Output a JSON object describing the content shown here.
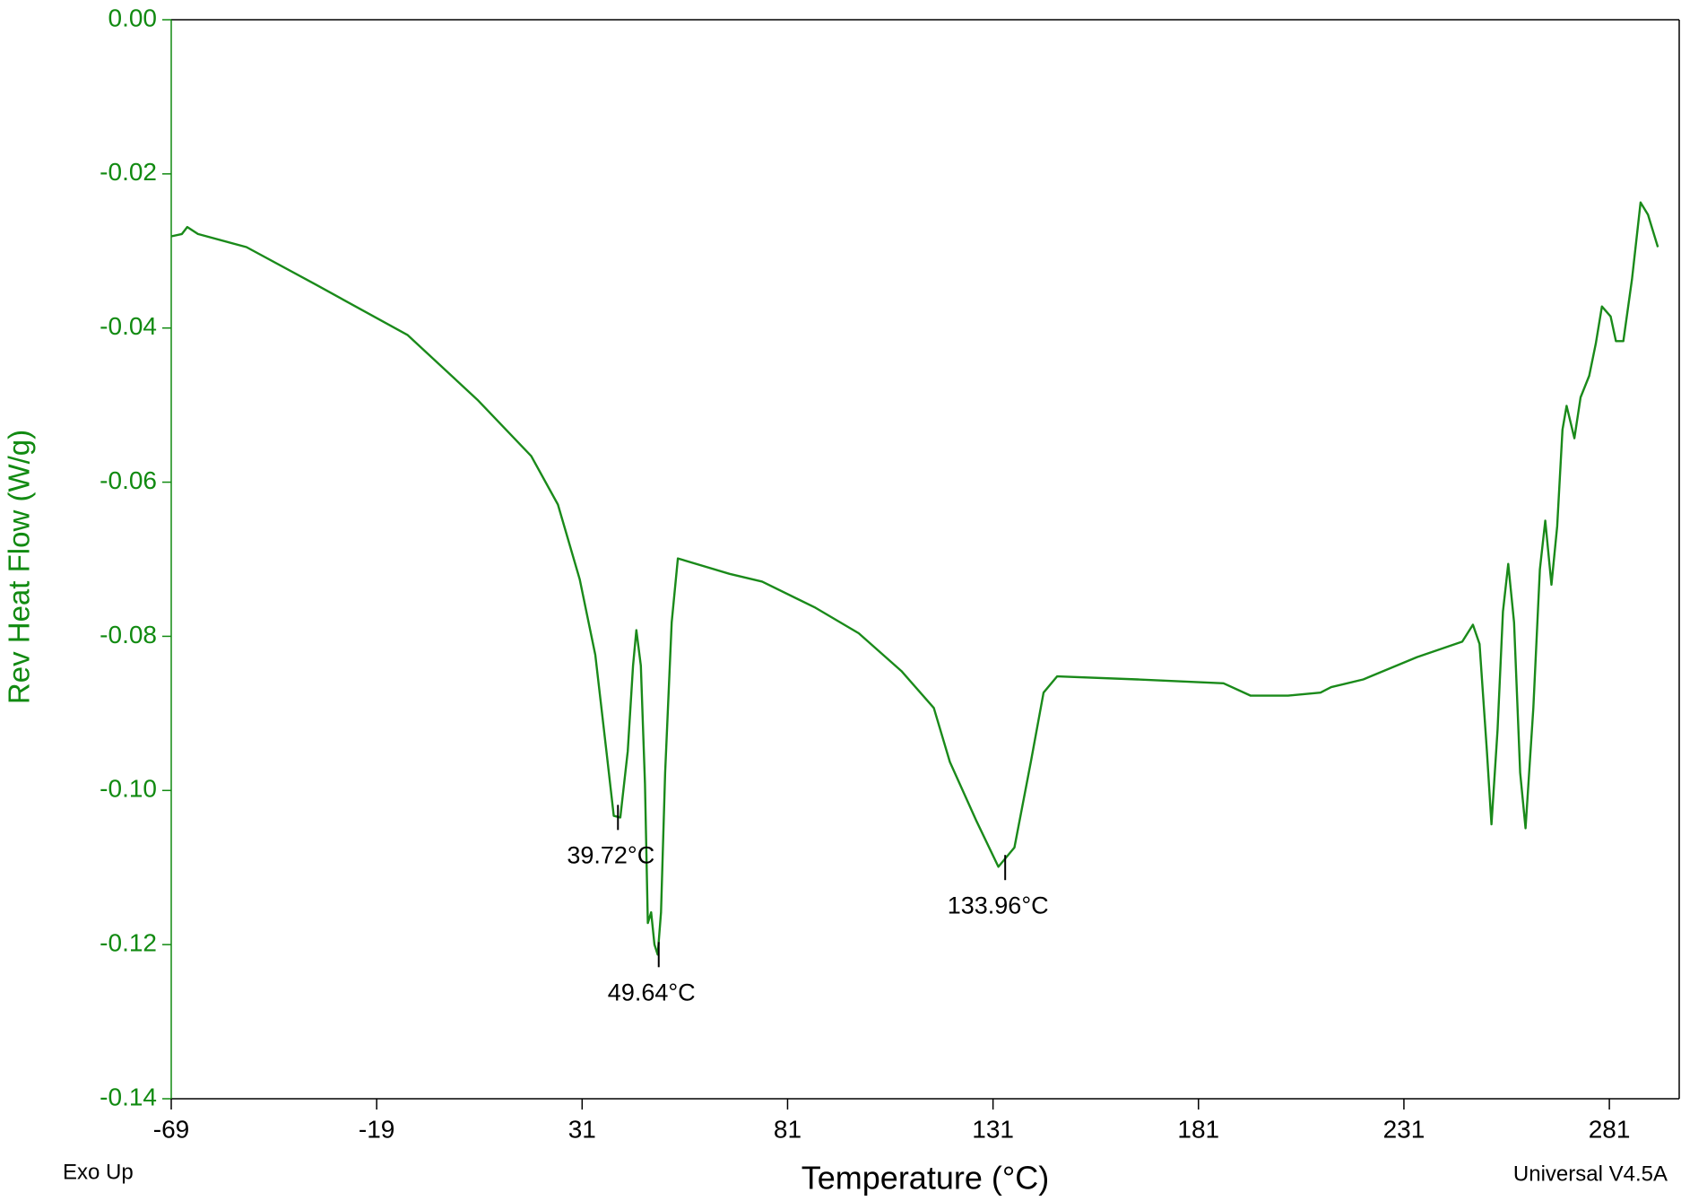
{
  "chart_data": {
    "type": "line",
    "xlabel": "Temperature (°C)",
    "ylabel": "Rev Heat Flow (W/g)",
    "footer_left": "Exo Up",
    "footer_right": "Universal V4.5A",
    "color": "#1a8a1a",
    "xlim": [
      -69,
      298
    ],
    "ylim": [
      -0.14,
      0
    ],
    "xticks": [
      -69,
      -19,
      31,
      81,
      131,
      181,
      231,
      281
    ],
    "yticks": [
      {
        "value": 0,
        "label": "0.00"
      },
      -0.02,
      -0.04,
      -0.06,
      -0.08,
      {
        "value": -0.1,
        "label": "-0.10"
      },
      -0.12,
      -0.14
    ],
    "x": [
      -69,
      -66.4,
      -65.1,
      -62.5,
      -50.7,
      -33.7,
      -11.5,
      5.5,
      18.6,
      25.1,
      30.4,
      34.2,
      36.9,
      38.7,
      40.3,
      42.1,
      43.4,
      44.2,
      45.3,
      46.3,
      47.0,
      47.8,
      48.6,
      49.4,
      50.2,
      51.2,
      52.8,
      54.3,
      66.9,
      74.8,
      87.8,
      98.3,
      108.7,
      116.6,
      120.5,
      127.0,
      132.3,
      136.2,
      140.2,
      143.3,
      146.6,
      166.2,
      187.1,
      193.7,
      202.8,
      210.7,
      213.3,
      221.1,
      234.2,
      245.2,
      247.8,
      249.4,
      251.2,
      252.3,
      253.8,
      255.1,
      256.4,
      257.8,
      259.3,
      260.6,
      262.5,
      264.1,
      265.4,
      266.9,
      268.3,
      269.6,
      270.6,
      272.5,
      274.0,
      276.1,
      277.7,
      279.2,
      281.3,
      282.6,
      284.4,
      286.5,
      288.6,
      290.4,
      292.8
    ],
    "values": [
      -0.0281,
      -0.0278,
      -0.0269,
      -0.0278,
      -0.0295,
      -0.0344,
      -0.0409,
      -0.0493,
      -0.0566,
      -0.0629,
      -0.0726,
      -0.0824,
      -0.0949,
      -0.1033,
      -0.1035,
      -0.0949,
      -0.0838,
      -0.0792,
      -0.0838,
      -0.0991,
      -0.1172,
      -0.1158,
      -0.12,
      -0.1213,
      -0.1158,
      -0.0977,
      -0.0782,
      -0.0699,
      -0.0719,
      -0.0729,
      -0.0763,
      -0.0796,
      -0.0845,
      -0.0893,
      -0.0963,
      -0.104,
      -0.1099,
      -0.1074,
      -0.0963,
      -0.0873,
      -0.0852,
      -0.0856,
      -0.0861,
      -0.0877,
      -0.0877,
      -0.0873,
      -0.0866,
      -0.0856,
      -0.0827,
      -0.0807,
      -0.0785,
      -0.081,
      -0.0949,
      -0.1044,
      -0.0921,
      -0.0768,
      -0.0706,
      -0.0782,
      -0.0977,
      -0.1049,
      -0.0893,
      -0.0713,
      -0.065,
      -0.0733,
      -0.0657,
      -0.0532,
      -0.0501,
      -0.0543,
      -0.049,
      -0.0462,
      -0.042,
      -0.0372,
      -0.0385,
      -0.0417,
      -0.0417,
      -0.0337,
      -0.0237,
      -0.0253,
      -0.0295
    ],
    "annotations": [
      {
        "x": 39.72,
        "y": -0.1035,
        "label": "39.72°C"
      },
      {
        "x": 49.64,
        "y": -0.1213,
        "label": "49.64°C"
      },
      {
        "x": 133.96,
        "y": -0.11,
        "label": "133.96°C"
      }
    ]
  }
}
